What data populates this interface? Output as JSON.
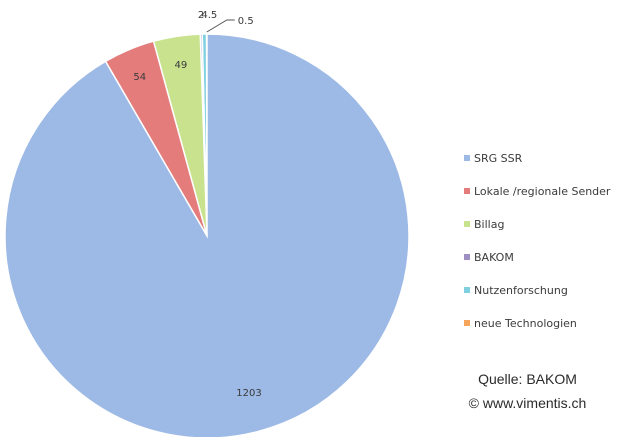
{
  "chart_data": {
    "type": "pie",
    "slices": [
      {
        "label": "SRG SSR",
        "value": 1203,
        "data_label": "1203",
        "color": "#9db9e5"
      },
      {
        "label": "Lokale /regionale Sender",
        "value": 54,
        "data_label": "54",
        "color": "#e57c7c"
      },
      {
        "label": "Billag",
        "value": 49,
        "data_label": "49",
        "color": "#c8e28e"
      },
      {
        "label": "BAKOM",
        "value": 2,
        "data_label": "2",
        "color": "#9d8fc2"
      },
      {
        "label": "Nutzenforschung",
        "value": 4.5,
        "data_label": "4.5",
        "color": "#7fd0e0"
      },
      {
        "label": "neue Technologien",
        "value": 0.5,
        "data_label": "0.5",
        "color": "#f5a65b"
      }
    ],
    "legend_position": "right"
  },
  "credits": {
    "source": "Quelle: BAKOM",
    "website": "© www.vimentis.ch"
  }
}
